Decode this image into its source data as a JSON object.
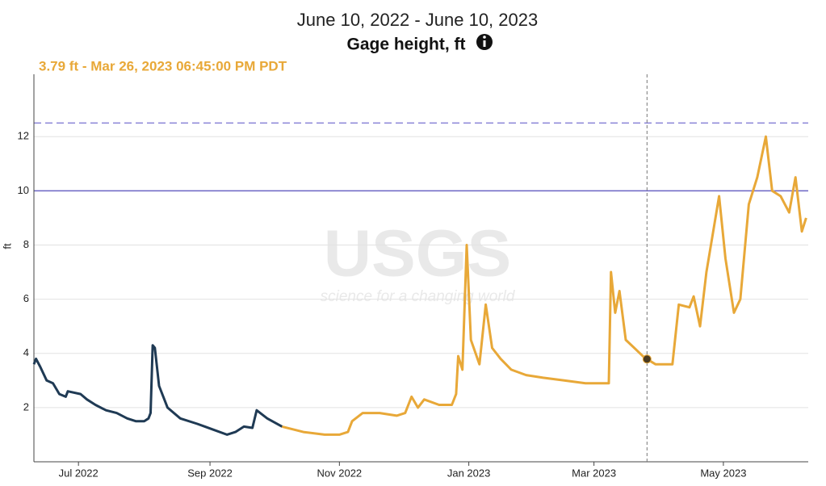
{
  "chart_data": {
    "type": "line",
    "subtitle": "June 10, 2022 - June 10, 2023",
    "y_label": "Gage height, ft",
    "y_axis_label": "ft",
    "watermark": {
      "logo": "USGS",
      "tagline": "science for a changing world"
    },
    "xlim": [
      "2022-06-10",
      "2023-06-10"
    ],
    "xticks": [
      {
        "value": "2022-07-01",
        "label": "Jul 2022"
      },
      {
        "value": "2022-09-01",
        "label": "Sep 2022"
      },
      {
        "value": "2022-11-01",
        "label": "Nov 2022"
      },
      {
        "value": "2023-01-01",
        "label": "Jan 2023"
      },
      {
        "value": "2023-03-01",
        "label": "Mar 2023"
      },
      {
        "value": "2023-05-01",
        "label": "May 2023"
      }
    ],
    "ylim": [
      0,
      14.3
    ],
    "yticks": [
      2,
      4,
      6,
      8,
      10,
      12
    ],
    "grid": true,
    "hlines": [
      {
        "value": 10,
        "style": "solid",
        "color": "#6b63c4"
      },
      {
        "value": 12.5,
        "style": "dashed",
        "color": "#8a84d6"
      }
    ],
    "series": [
      {
        "color": "#1f3a54",
        "x": [
          "2022-06-10",
          "2022-06-11",
          "2022-06-13",
          "2022-06-16",
          "2022-06-19",
          "2022-06-22",
          "2022-06-25",
          "2022-06-26",
          "2022-07-02",
          "2022-07-05",
          "2022-07-09",
          "2022-07-14",
          "2022-07-19",
          "2022-07-24",
          "2022-07-28",
          "2022-08-01",
          "2022-08-03",
          "2022-08-04",
          "2022-08-05",
          "2022-08-06",
          "2022-08-08",
          "2022-08-12",
          "2022-08-18",
          "2022-08-26",
          "2022-09-02",
          "2022-09-09",
          "2022-09-13",
          "2022-09-17",
          "2022-09-21",
          "2022-09-23",
          "2022-09-28",
          "2022-10-05"
        ],
        "values": [
          3.6,
          3.8,
          3.5,
          3.0,
          2.9,
          2.5,
          2.4,
          2.6,
          2.5,
          2.3,
          2.1,
          1.9,
          1.8,
          1.6,
          1.5,
          1.5,
          1.6,
          1.8,
          4.3,
          4.2,
          2.8,
          2.0,
          1.6,
          1.4,
          1.2,
          1.0,
          1.1,
          1.3,
          1.25,
          1.9,
          1.6,
          1.3
        ]
      },
      {
        "color": "#e8a838",
        "x": [
          "2022-10-05",
          "2022-10-15",
          "2022-10-25",
          "2022-11-01",
          "2022-11-05",
          "2022-11-07",
          "2022-11-12",
          "2022-11-20",
          "2022-11-28",
          "2022-12-02",
          "2022-12-05",
          "2022-12-08",
          "2022-12-11",
          "2022-12-18",
          "2022-12-24",
          "2022-12-26",
          "2022-12-27",
          "2022-12-29",
          "2022-12-31",
          "2023-01-02",
          "2023-01-06",
          "2023-01-09",
          "2023-01-12",
          "2023-01-16",
          "2023-01-21",
          "2023-01-28",
          "2023-02-05",
          "2023-02-15",
          "2023-02-25",
          "2023-03-08",
          "2023-03-09",
          "2023-03-11",
          "2023-03-13",
          "2023-03-16",
          "2023-03-20",
          "2023-03-24",
          "2023-03-26",
          "2023-03-30",
          "2023-04-04",
          "2023-04-07",
          "2023-04-10",
          "2023-04-15",
          "2023-04-17",
          "2023-04-20",
          "2023-04-23",
          "2023-04-29",
          "2023-05-02",
          "2023-05-06",
          "2023-05-09",
          "2023-05-13",
          "2023-05-17",
          "2023-05-21",
          "2023-05-24",
          "2023-05-28",
          "2023-06-01",
          "2023-06-04",
          "2023-06-07",
          "2023-06-09"
        ],
        "values": [
          1.3,
          1.1,
          1.0,
          1.0,
          1.1,
          1.5,
          1.8,
          1.8,
          1.7,
          1.8,
          2.4,
          2.0,
          2.3,
          2.1,
          2.1,
          2.5,
          3.9,
          3.4,
          8.0,
          4.5,
          3.6,
          5.8,
          4.2,
          3.8,
          3.4,
          3.2,
          3.1,
          3.0,
          2.9,
          2.9,
          7.0,
          5.5,
          6.3,
          4.5,
          4.2,
          3.9,
          3.79,
          3.6,
          3.6,
          3.6,
          5.8,
          5.7,
          6.1,
          5.0,
          7.0,
          9.8,
          7.5,
          5.5,
          6.0,
          9.5,
          10.5,
          12.0,
          10.0,
          9.8,
          9.2,
          10.5,
          8.5,
          9.0
        ]
      }
    ],
    "marker": {
      "x": "2023-03-26",
      "value": 3.79,
      "label": "3.79 ft - Mar 26, 2023 06:45:00 PM PDT",
      "color": "#e8a838"
    }
  }
}
